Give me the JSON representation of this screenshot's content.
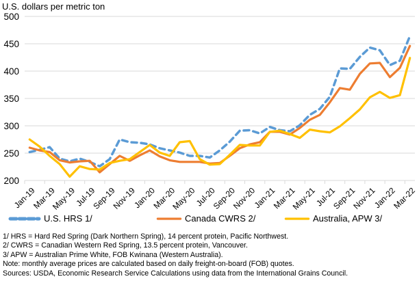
{
  "chart_data": {
    "type": "line",
    "title": "",
    "ylabel": "U.S. dollars per metric ton",
    "xlabel": "",
    "ylim": [
      200,
      500
    ],
    "yticks": [
      200,
      250,
      300,
      350,
      400,
      450,
      500
    ],
    "grid": true,
    "legend_position": "bottom",
    "x": [
      "Jan-19",
      "Feb-19",
      "Mar-19",
      "Apr-19",
      "May-19",
      "Jun-19",
      "Jul-19",
      "Aug-19",
      "Sep-19",
      "Oct-19",
      "Nov-19",
      "Dec-19",
      "Jan-20",
      "Feb-20",
      "Mar-20",
      "Apr-20",
      "May-20",
      "Jun-20",
      "Jul-20",
      "Aug-20",
      "Sep-20",
      "Oct-20",
      "Nov-20",
      "Dec-20",
      "Jan-21",
      "Feb-21",
      "Mar-21",
      "Apr-21",
      "May-21",
      "Jun-21",
      "Jul-21",
      "Aug-21",
      "Sep-21",
      "Oct-21",
      "Nov-21",
      "Dec-21",
      "Jan-22",
      "Feb-22",
      "Mar-22"
    ],
    "xtick_labels": [
      "Jan-19",
      "Mar-19",
      "May-19",
      "Jul-19",
      "Sep-19",
      "Nov-19",
      "Jan-20",
      "Mar-20",
      "May-20",
      "Jul-20",
      "Sep-20",
      "Nov-20",
      "Jan-21",
      "Mar-21",
      "May-21",
      "Jul-21",
      "Sep-21",
      "Nov-21",
      "Jan-22",
      "Mar-22"
    ],
    "series": [
      {
        "name": "U.S. HRS 1/",
        "color": "#5B9BD5",
        "style": "dashed",
        "values": [
          252,
          256,
          261,
          240,
          235,
          240,
          234,
          226,
          239,
          275,
          270,
          269,
          266,
          259,
          255,
          251,
          245,
          245,
          242,
          255,
          271,
          291,
          292,
          286,
          298,
          292,
          290,
          301,
          320,
          331,
          353,
          405,
          404,
          426,
          443,
          438,
          411,
          419,
          464
        ]
      },
      {
        "name": "Canada CWRS 2/",
        "color": "#ED7D31",
        "style": "solid",
        "values": [
          260,
          255,
          252,
          237,
          233,
          235,
          236,
          215,
          230,
          245,
          236,
          246,
          255,
          244,
          237,
          234,
          234,
          234,
          231,
          232,
          245,
          259,
          266,
          270,
          289,
          289,
          284,
          296,
          311,
          320,
          343,
          369,
          366,
          395,
          414,
          415,
          389,
          406,
          446
        ]
      },
      {
        "name": "Australia, APW 3/",
        "color": "#FFC000",
        "style": "solid",
        "values": [
          275,
          262,
          245,
          230,
          207,
          226,
          221,
          220,
          232,
          236,
          239,
          252,
          265,
          251,
          245,
          270,
          272,
          239,
          229,
          230,
          247,
          265,
          264,
          264,
          289,
          291,
          285,
          278,
          293,
          290,
          288,
          299,
          314,
          330,
          352,
          362,
          351,
          356,
          424
        ]
      }
    ]
  },
  "notes": [
    "1/ HRS = Hard Red Spring (Dark Northern Spring), 14 percent protein, Pacific Northwest.",
    "2/ CWRS = Canadian Western Red Spring, 13.5 percent protein, Vancouver.",
    "3/ APW = Australian Prime White, FOB Kwinana (Western Australia).",
    "Note: monthly average prices are calculated based on daily freight-on-board (FOB) quotes.",
    "Sources: USDA, Economic Research Service Calculations using data from the International Grains Council."
  ]
}
